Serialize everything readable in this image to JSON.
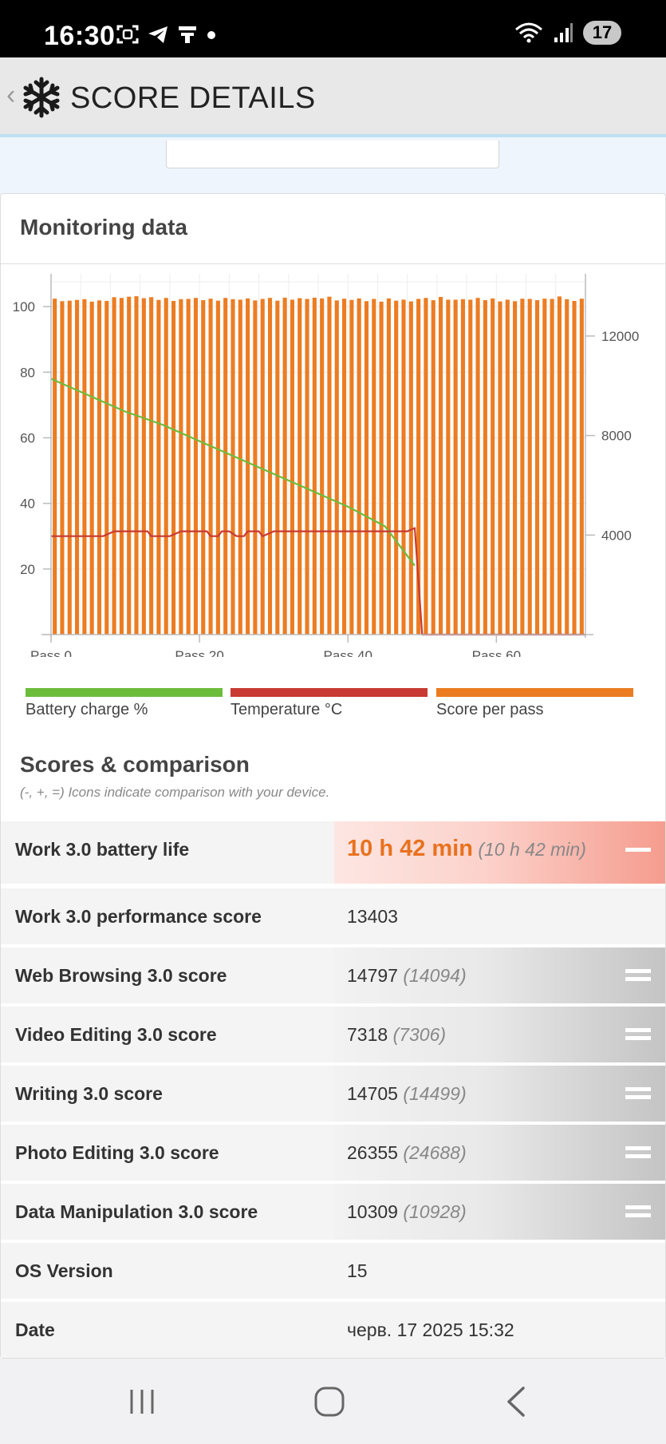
{
  "status_bar": {
    "time": "16:30",
    "battery": "17"
  },
  "header": {
    "title": "SCORE DETAILS"
  },
  "monitoring": {
    "title": "Monitoring data",
    "legend": [
      {
        "label": "Battery charge %",
        "color": "#6cbc3c"
      },
      {
        "label": "Temperature °C",
        "color": "#c83a32"
      },
      {
        "label": "Score per pass",
        "color": "#ec7c22"
      }
    ]
  },
  "chart_data": {
    "type": "bar",
    "x_tick_labels": [
      "Pass 0",
      "Pass 20",
      "Pass 40",
      "Pass 60"
    ],
    "x_ticks": [
      0,
      20,
      40,
      60
    ],
    "xlim": [
      0,
      72
    ],
    "ylim_left": [
      0,
      110
    ],
    "left_ticks": [
      20,
      40,
      60,
      80,
      100
    ],
    "ylim_right": [
      0,
      14500
    ],
    "right_ticks": [
      4000,
      8000,
      12000
    ],
    "grid": true,
    "series": [
      {
        "name": "Score per pass",
        "axis": "right",
        "color": "#ec7c22",
        "values": [
          13500,
          13400,
          13420,
          13450,
          13480,
          13380,
          13430,
          13410,
          13560,
          13530,
          13580,
          13600,
          13520,
          13560,
          13450,
          13530,
          13410,
          13480,
          13490,
          13530,
          13440,
          13500,
          13420,
          13530,
          13480,
          13460,
          13510,
          13430,
          13490,
          13530,
          13420,
          13540,
          13460,
          13520,
          13490,
          13540,
          13510,
          13580,
          13430,
          13500,
          13450,
          13510,
          13400,
          13490,
          13380,
          13510,
          13420,
          13460,
          13390,
          13490,
          13530,
          13440,
          13570,
          13460,
          13460,
          13480,
          13460,
          13530,
          13440,
          13510,
          13390,
          13460,
          13400,
          13500,
          13490,
          13440,
          13500,
          13490,
          13590,
          13480,
          13410,
          13500
        ]
      },
      {
        "name": "Battery charge %",
        "axis": "left",
        "color": "#6cbc3c",
        "x": [
          0,
          5,
          10,
          15,
          20,
          25,
          30,
          35,
          40,
          45,
          49
        ],
        "values": [
          78,
          73,
          68,
          64,
          59,
          54,
          49,
          44,
          39,
          33,
          21
        ]
      },
      {
        "name": "Temperature °C",
        "axis": "left",
        "color": "#c83a32",
        "x": [
          0,
          7,
          8.5,
          13,
          13.5,
          16,
          17.5,
          21,
          21.5,
          22.5,
          23,
          24,
          25,
          26,
          26.5,
          28,
          28.5,
          30,
          48,
          49,
          50,
          72
        ],
        "values": [
          30,
          30,
          31.5,
          31.5,
          30,
          30,
          31.5,
          31.5,
          30,
          30,
          31.5,
          31.5,
          30,
          30,
          31.5,
          31.5,
          30,
          31.5,
          31.5,
          32.5,
          0,
          0
        ]
      }
    ]
  },
  "scores": {
    "title": "Scores & comparison",
    "note": "(-, +, =) Icons indicate comparison with your device.",
    "rows": [
      {
        "label": "Work 3.0 battery life",
        "value": "10 h 42 min",
        "compare": "(10 h 42 min)",
        "icon": "minus-icon"
      },
      {
        "label": "Work 3.0 performance score",
        "value": "13403",
        "compare": ""
      },
      {
        "label": "Web Browsing 3.0 score",
        "value": "14797",
        "compare": "(14094)",
        "icon": "equals-icon"
      },
      {
        "label": "Video Editing 3.0 score",
        "value": "7318",
        "compare": "(7306)",
        "icon": "equals-icon"
      },
      {
        "label": "Writing 3.0 score",
        "value": "14705",
        "compare": "(14499)",
        "icon": "equals-icon"
      },
      {
        "label": "Photo Editing 3.0 score",
        "value": "26355",
        "compare": "(24688)",
        "icon": "equals-icon"
      },
      {
        "label": "Data Manipulation 3.0 score",
        "value": "10309",
        "compare": "(10928)",
        "icon": "equals-icon"
      },
      {
        "label": "OS Version",
        "value": "15",
        "compare": ""
      },
      {
        "label": "Date",
        "value": "черв. 17 2025 15:32",
        "compare": ""
      }
    ]
  }
}
